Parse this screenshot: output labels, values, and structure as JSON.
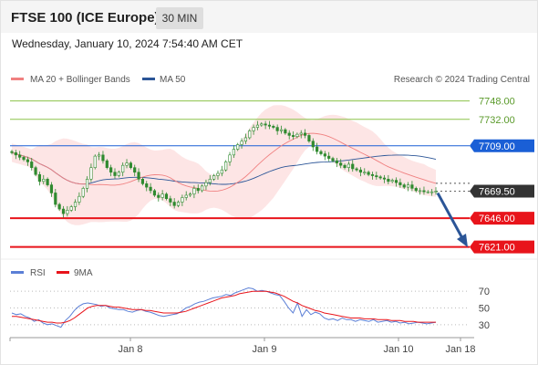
{
  "header": {
    "title": "FTSE 100 (ICE Europe)",
    "timeframe": "30 MIN",
    "datetime": "Wednesday, January 10, 2024 7:54:40 AM CET"
  },
  "legend": {
    "ma20_label": "MA 20 + Bollinger Bands",
    "ma50_label": "MA 50",
    "credit": "Research © 2024 Trading Central"
  },
  "rsi_legend": {
    "rsi_label": "RSI",
    "ma_label": "9MA"
  },
  "colors": {
    "ma20": "#f08080",
    "ma50": "#2b5597",
    "band_fill": "#fde0e0",
    "candle": "#2f8a2f",
    "resistance": "#8bc34a",
    "pivot": "#1a5fd6",
    "support": "#e8141b",
    "current": "#333333",
    "arrow": "#2b5597",
    "rsi": "#5b7fd6",
    "rsi_ma": "#e8141b"
  },
  "chart_data": {
    "type": "candlestick",
    "x_labels": [
      "Jan 8",
      "Jan 9",
      "Jan 10",
      "Jan 18"
    ],
    "ylim": [
      7612,
      7758
    ],
    "levels": [
      {
        "name": "resistance-2",
        "value": 7748.0,
        "label": "7748.00",
        "kind": "resistance"
      },
      {
        "name": "resistance-1",
        "value": 7732.0,
        "label": "7732.00",
        "kind": "resistance"
      },
      {
        "name": "pivot",
        "value": 7709.0,
        "label": "7709.00",
        "kind": "pivot"
      },
      {
        "name": "current-price",
        "value": 7669.5,
        "label": "7669.50",
        "kind": "current"
      },
      {
        "name": "support-1",
        "value": 7646.0,
        "label": "7646.00",
        "kind": "support"
      },
      {
        "name": "support-2",
        "value": 7621.0,
        "label": "7621.00",
        "kind": "support"
      }
    ],
    "closes": [
      7703,
      7701,
      7699,
      7697,
      7695,
      7690,
      7684,
      7678,
      7680,
      7675,
      7668,
      7658,
      7654,
      7650,
      7653,
      7656,
      7660,
      7665,
      7672,
      7680,
      7690,
      7700,
      7701,
      7696,
      7690,
      7686,
      7683,
      7686,
      7692,
      7694,
      7690,
      7686,
      7680,
      7676,
      7673,
      7670,
      7666,
      7664,
      7667,
      7663,
      7660,
      7657,
      7660,
      7664,
      7666,
      7667,
      7672,
      7670,
      7674,
      7677,
      7680,
      7683,
      7685,
      7688,
      7695,
      7701,
      7706,
      7710,
      7713,
      7716,
      7722,
      7725,
      7727,
      7728,
      7727,
      7726,
      7725,
      7722,
      7723,
      7720,
      7718,
      7717,
      7719,
      7720,
      7718,
      7713,
      7708,
      7704,
      7702,
      7700,
      7698,
      7696,
      7694,
      7692,
      7690,
      7693,
      7689,
      7688,
      7686,
      7686,
      7684,
      7683,
      7682,
      7681,
      7680,
      7678,
      7679,
      7677,
      7675,
      7673,
      7675,
      7672,
      7670,
      7670,
      7669,
      7669,
      7669,
      7669.5
    ],
    "rsi_axis": {
      "ticks": [
        70,
        50,
        30
      ],
      "ylim": [
        20,
        80
      ]
    },
    "rsi_values": [
      44,
      42,
      43,
      40,
      38,
      34,
      36,
      32,
      30,
      31,
      29,
      27,
      35,
      40,
      47,
      52,
      55,
      56,
      55,
      54,
      52,
      53,
      50,
      49,
      48,
      48,
      46,
      45,
      47,
      48,
      46,
      45,
      43,
      41,
      40,
      41,
      42,
      43,
      46,
      50,
      52,
      55,
      57,
      58,
      60,
      62,
      63,
      64,
      66,
      65,
      68,
      70,
      72,
      74,
      73,
      70,
      71,
      70,
      68,
      66,
      65,
      58,
      50,
      44,
      56,
      40,
      48,
      42,
      45,
      43,
      38,
      36,
      37,
      35,
      38,
      36,
      36,
      34,
      36,
      35,
      34,
      36,
      33,
      34,
      35,
      33,
      34,
      32,
      33,
      31,
      32,
      33,
      32,
      31,
      32,
      33
    ],
    "rsi_ma_values": [
      40,
      40,
      39,
      38,
      37,
      36,
      35,
      34,
      33,
      33,
      32,
      32,
      33,
      35,
      38,
      42,
      46,
      50,
      52,
      53,
      53,
      53,
      52,
      51,
      51,
      50,
      49,
      48,
      48,
      48,
      47,
      47,
      46,
      45,
      44,
      44,
      44,
      44,
      45,
      46,
      48,
      50,
      52,
      54,
      56,
      58,
      60,
      62,
      63,
      64,
      65,
      67,
      68,
      69,
      70,
      70,
      70,
      70,
      69,
      68,
      66,
      64,
      61,
      58,
      56,
      53,
      51,
      49,
      47,
      46,
      44,
      43,
      42,
      41,
      40,
      39,
      38,
      38,
      38,
      37,
      37,
      37,
      36,
      36,
      36,
      35,
      35,
      35,
      34,
      34,
      34,
      33,
      33,
      33,
      33,
      33
    ]
  }
}
